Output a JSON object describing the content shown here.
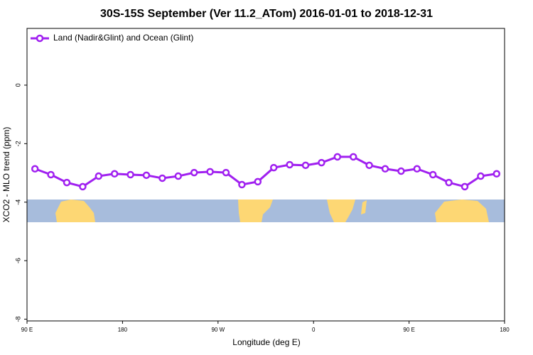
{
  "chart_data": {
    "type": "line",
    "title": "30S-15S September (Ver 11.2_ATom)   2016-01-01 to 2018-12-31",
    "xlabel": "Longitude (deg E)",
    "ylabel": "XCO2 - MLO trend (ppm)",
    "x": [
      97.5,
      112.5,
      127.5,
      142.5,
      157.5,
      172.5,
      187.5,
      202.5,
      217.5,
      232.5,
      247.5,
      262.5,
      277.5,
      292.5,
      307.5,
      322.5,
      337.5,
      352.5,
      367.5,
      382.5,
      397.5,
      412.5,
      427.5,
      442.5,
      457.5,
      472.5,
      487.5,
      502.5,
      517.5,
      532.5
    ],
    "series": [
      {
        "name": "Land (Nadir&Glint) and Ocean (Glint)",
        "color": "#a020f0",
        "values": [
          -2.86,
          -3.06,
          -3.33,
          -3.47,
          -3.11,
          -3.03,
          -3.06,
          -3.08,
          -3.18,
          -3.11,
          -2.99,
          -2.96,
          -2.99,
          -3.4,
          -3.3,
          -2.82,
          -2.72,
          -2.74,
          -2.65,
          -2.45,
          -2.45,
          -2.74,
          -2.86,
          -2.94,
          -2.86,
          -3.06,
          -3.33,
          -3.47,
          -3.11,
          -3.03
        ]
      }
    ],
    "xlim": [
      90,
      540
    ],
    "xticks": [
      {
        "value": 90,
        "label": "90 E"
      },
      180,
      {
        "value": 270,
        "label": "90 W"
      },
      {
        "value": 360,
        "label": "0"
      },
      {
        "value": 450,
        "label": "90 E"
      },
      {
        "value": 540,
        "label": "180"
      }
    ],
    "ylim": [
      -8.06,
      1.94
    ],
    "yticks": [
      0,
      -2,
      -4,
      -6,
      -8
    ],
    "legend": "top-left"
  }
}
